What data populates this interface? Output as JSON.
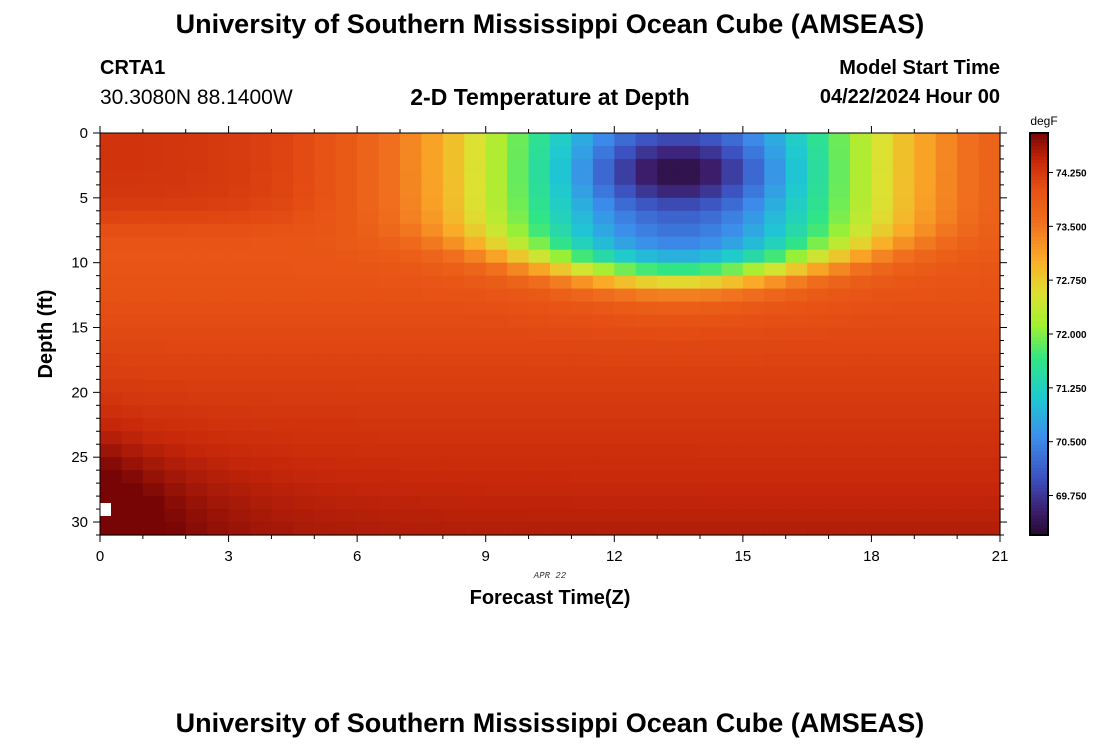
{
  "header": {
    "title": "University of Southern Mississippi Ocean Cube (AMSEAS)",
    "title_repeat": "University of Southern Mississippi Ocean Cube (AMSEAS)",
    "station": "CRTA1",
    "coords": "30.3080N  88.1400W",
    "subtitle": "2-D Temperature at Depth",
    "model_start_label": "Model Start Time",
    "model_start_value": "04/22/2024 Hour 00"
  },
  "chart_data": {
    "type": "heatmap",
    "title": "2-D Temperature at Depth",
    "xlabel": "Forecast Time(Z)",
    "ylabel": "Depth (ft)",
    "date_annotation": "APR 22",
    "xlim": [
      0,
      21
    ],
    "ylim": [
      31,
      0
    ],
    "x_ticks": [
      0,
      3,
      6,
      9,
      12,
      15,
      18,
      21
    ],
    "y_ticks": [
      0,
      5,
      10,
      15,
      20,
      25,
      30
    ],
    "x_cells": 42,
    "y_cells": 31,
    "colorbar": {
      "units": "degF",
      "min": 69.2,
      "max": 74.8,
      "ticks": [
        "69.750",
        "70.500",
        "71.250",
        "72.000",
        "72.750",
        "73.500",
        "74.250"
      ]
    },
    "field_description": "Warm mixed layer (~73.5-74.5 degF) below ~11 ft; cold core near 69.2 degF at depth ~3 ft around hours 13-14; warmest ~74.8 degF near bottom at hours 0-1."
  }
}
